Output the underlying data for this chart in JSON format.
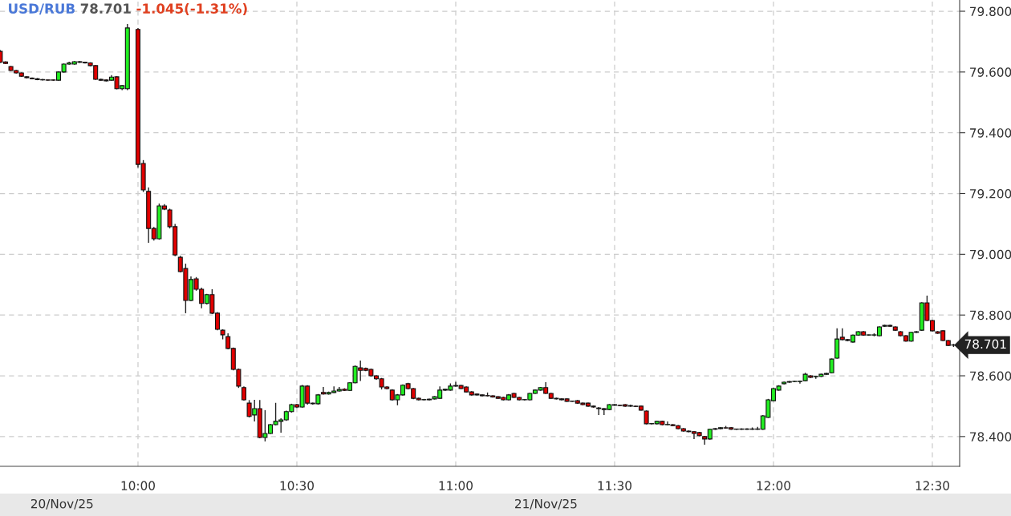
{
  "chart_data": {
    "type": "candlestick",
    "title": "USD/RUB 78.701 -1.045(-1.31%)",
    "x": [
      9.5667,
      9.5833,
      9.6,
      9.6167,
      9.6333,
      9.65,
      9.6667,
      9.6833,
      9.7,
      9.7167,
      9.7333,
      9.75,
      9.7667,
      9.7833,
      9.8,
      9.8167,
      9.8333,
      9.85,
      9.8667,
      9.8833,
      9.9,
      9.9167,
      9.9333,
      9.95,
      9.9667,
      10,
      10.0167,
      10.0333,
      10.05,
      10.0667,
      10.0833,
      10.1,
      10.1167,
      10.1333,
      10.15,
      10.1667,
      10.1833,
      10.2,
      10.2167,
      10.2333,
      10.25,
      10.2667,
      10.2833,
      10.3,
      10.3167,
      10.3333,
      10.35,
      10.3667,
      10.3833,
      10.4,
      10.4167,
      10.4333,
      10.45,
      10.4667,
      10.4833,
      10.5,
      10.5167,
      10.5333,
      10.55,
      10.5667,
      10.5833,
      10.6,
      10.6167,
      10.6333,
      10.65,
      10.6667,
      10.6833,
      10.7,
      10.7167,
      10.7333,
      10.75,
      10.7667,
      10.7833,
      10.8,
      10.8167,
      10.8333,
      10.85,
      10.8667,
      10.8833,
      10.9,
      10.9167,
      10.9333,
      10.95,
      10.9667,
      10.9833,
      11,
      11.0167,
      11.0333,
      11.05,
      11.0667,
      11.0833,
      11.1,
      11.1167,
      11.1333,
      11.15,
      11.1667,
      11.1833,
      11.2,
      11.2167,
      11.2333,
      11.25,
      11.2667,
      11.2833,
      11.3,
      11.3167,
      11.3333,
      11.35,
      11.3667,
      11.3833,
      11.4,
      11.4167,
      11.4333,
      11.45,
      11.4667,
      11.4833,
      11.5,
      11.5167,
      11.5333,
      11.55,
      11.5667,
      11.5833,
      11.6,
      11.6167,
      11.6333,
      11.65,
      11.6667,
      11.6833,
      11.7,
      11.7167,
      11.7333,
      11.75,
      11.7667,
      11.7833,
      11.8,
      11.8167,
      11.8333,
      11.85,
      11.8667,
      11.8833,
      11.9,
      11.9167,
      11.9333,
      11.95,
      11.9667,
      11.9833,
      12,
      12.0167,
      12.0333,
      12.05,
      12.0667,
      12.0833,
      12.1,
      12.1167,
      12.1333,
      12.15,
      12.1667,
      12.1833,
      12.2,
      12.2167,
      12.2333,
      12.25,
      12.2667,
      12.2833,
      12.3,
      12.3167,
      12.3333,
      12.35,
      12.3667,
      12.3833,
      12.4,
      12.4167,
      12.4333,
      12.45,
      12.4667,
      12.4833,
      12.5,
      12.5167,
      12.5333,
      12.55,
      12.5667
    ],
    "ohlc": [
      [
        79.668,
        79.672,
        79.63,
        79.632
      ],
      [
        79.633,
        79.635,
        79.626,
        79.628
      ],
      [
        79.618,
        79.62,
        79.603,
        79.605
      ],
      [
        79.605,
        79.607,
        79.595,
        79.597
      ],
      [
        79.597,
        79.598,
        79.584,
        79.586
      ],
      [
        79.584,
        79.586,
        79.579,
        79.581
      ],
      [
        79.58,
        79.582,
        79.576,
        79.578
      ],
      [
        79.578,
        79.58,
        79.573,
        79.575
      ],
      [
        79.575,
        79.577,
        79.572,
        79.574
      ],
      [
        79.574,
        79.576,
        79.571,
        79.573
      ],
      [
        79.574,
        79.576,
        79.571,
        79.573
      ],
      [
        79.573,
        79.602,
        79.571,
        79.6
      ],
      [
        79.6,
        79.628,
        79.598,
        79.626
      ],
      [
        79.626,
        79.634,
        79.624,
        79.63
      ],
      [
        79.626,
        79.636,
        79.624,
        79.634
      ],
      [
        79.634,
        79.636,
        79.63,
        79.632
      ],
      [
        79.632,
        79.634,
        79.628,
        79.63
      ],
      [
        79.63,
        79.632,
        79.619,
        79.621
      ],
      [
        79.621,
        79.623,
        79.574,
        79.576
      ],
      [
        79.576,
        79.578,
        79.571,
        79.573
      ],
      [
        79.574,
        79.576,
        79.569,
        79.571
      ],
      [
        79.573,
        79.59,
        79.571,
        79.583
      ],
      [
        79.584,
        79.586,
        79.543,
        79.545
      ],
      [
        79.545,
        79.557,
        79.54,
        79.555
      ],
      [
        79.545,
        79.758,
        79.54,
        79.745
      ],
      [
        79.74,
        79.745,
        79.285,
        79.296
      ],
      [
        79.299,
        79.31,
        79.205,
        79.212
      ],
      [
        79.207,
        79.22,
        79.038,
        79.085
      ],
      [
        79.085,
        79.09,
        79.045,
        79.051
      ],
      [
        79.051,
        79.167,
        79.048,
        79.159
      ],
      [
        79.159,
        79.165,
        79.145,
        79.149
      ],
      [
        79.146,
        79.15,
        79.085,
        79.091
      ],
      [
        79.091,
        79.1,
        78.994,
        78.998
      ],
      [
        78.99,
        78.995,
        78.94,
        78.943
      ],
      [
        78.953,
        78.969,
        78.806,
        78.848
      ],
      [
        78.848,
        78.927,
        78.845,
        78.917
      ],
      [
        78.919,
        78.925,
        78.88,
        78.885
      ],
      [
        78.885,
        78.89,
        78.822,
        78.838
      ],
      [
        78.838,
        78.87,
        78.835,
        78.867
      ],
      [
        78.867,
        78.885,
        78.803,
        78.806
      ],
      [
        78.806,
        78.81,
        78.75,
        78.753
      ],
      [
        78.75,
        78.753,
        78.72,
        78.735
      ],
      [
        78.729,
        78.74,
        78.687,
        78.69
      ],
      [
        78.69,
        78.693,
        78.618,
        78.621
      ],
      [
        78.621,
        78.624,
        78.56,
        78.566
      ],
      [
        78.561,
        78.565,
        78.518,
        78.521
      ],
      [
        78.51,
        78.52,
        78.463,
        78.466
      ],
      [
        78.471,
        78.521,
        78.45,
        78.492
      ],
      [
        78.492,
        78.52,
        78.394,
        78.397
      ],
      [
        78.397,
        78.487,
        78.384,
        78.41
      ],
      [
        78.41,
        78.442,
        78.408,
        78.439
      ],
      [
        78.439,
        78.511,
        78.437,
        78.45
      ],
      [
        78.45,
        78.46,
        78.413,
        78.455
      ],
      [
        78.455,
        78.485,
        78.452,
        78.482
      ],
      [
        78.482,
        78.508,
        78.479,
        78.505
      ],
      [
        78.505,
        78.508,
        78.494,
        78.497
      ],
      [
        78.497,
        78.57,
        78.495,
        78.566
      ],
      [
        78.566,
        78.569,
        78.505,
        78.51
      ],
      [
        78.51,
        78.512,
        78.505,
        78.508
      ],
      [
        78.508,
        78.54,
        78.505,
        78.537
      ],
      [
        78.545,
        78.563,
        78.538,
        78.54
      ],
      [
        78.54,
        78.548,
        78.538,
        78.545
      ],
      [
        78.545,
        78.565,
        78.543,
        78.55
      ],
      [
        78.55,
        78.563,
        78.548,
        78.555
      ],
      [
        78.556,
        78.559,
        78.55,
        78.552
      ],
      [
        78.552,
        78.579,
        78.55,
        78.577
      ],
      [
        78.577,
        78.634,
        78.575,
        78.631
      ],
      [
        78.626,
        78.65,
        78.583,
        78.618
      ],
      [
        78.624,
        78.627,
        78.615,
        78.618
      ],
      [
        78.621,
        78.624,
        78.597,
        78.6
      ],
      [
        78.6,
        78.602,
        78.587,
        78.59
      ],
      [
        78.59,
        78.593,
        78.555,
        78.563
      ],
      [
        78.563,
        78.566,
        78.555,
        78.558
      ],
      [
        78.553,
        78.556,
        78.518,
        78.521
      ],
      [
        78.521,
        78.54,
        78.503,
        78.537
      ],
      [
        78.537,
        78.572,
        78.535,
        78.569
      ],
      [
        78.574,
        78.577,
        78.555,
        78.558
      ],
      [
        78.558,
        78.56,
        78.523,
        78.526
      ],
      [
        78.526,
        78.528,
        78.519,
        78.521
      ],
      [
        78.521,
        78.524,
        78.519,
        78.521
      ],
      [
        78.521,
        78.525,
        78.519,
        78.523
      ],
      [
        78.524,
        78.533,
        78.522,
        78.531
      ],
      [
        78.526,
        78.565,
        78.524,
        78.553
      ],
      [
        78.553,
        78.558,
        78.55,
        78.556
      ],
      [
        78.553,
        78.575,
        78.551,
        78.566
      ],
      [
        78.566,
        78.58,
        78.564,
        78.568
      ],
      [
        78.568,
        78.57,
        78.556,
        78.558
      ],
      [
        78.563,
        78.565,
        78.545,
        78.547
      ],
      [
        78.547,
        78.549,
        78.535,
        78.537
      ],
      [
        78.54,
        78.542,
        78.535,
        78.537
      ],
      [
        78.537,
        78.539,
        78.532,
        78.534
      ],
      [
        78.535,
        78.545,
        78.532,
        78.534
      ],
      [
        78.534,
        78.536,
        78.528,
        78.53
      ],
      [
        78.531,
        78.533,
        78.524,
        78.526
      ],
      [
        78.529,
        78.531,
        78.519,
        78.521
      ],
      [
        78.521,
        78.54,
        78.519,
        78.537
      ],
      [
        78.542,
        78.544,
        78.527,
        78.529
      ],
      [
        78.529,
        78.531,
        78.519,
        78.521
      ],
      [
        78.521,
        78.523,
        78.519,
        78.521
      ],
      [
        78.521,
        78.544,
        78.519,
        78.542
      ],
      [
        78.542,
        78.555,
        78.54,
        78.553
      ],
      [
        78.553,
        78.563,
        78.551,
        78.561
      ],
      [
        78.561,
        78.579,
        78.54,
        78.542
      ],
      [
        78.542,
        78.544,
        78.524,
        78.526
      ],
      [
        78.526,
        78.528,
        78.522,
        78.524
      ],
      [
        78.524,
        78.526,
        78.519,
        78.521
      ],
      [
        78.524,
        78.526,
        78.514,
        78.516
      ],
      [
        78.516,
        78.518,
        78.514,
        78.516
      ],
      [
        78.518,
        78.52,
        78.508,
        78.51
      ],
      [
        78.51,
        78.512,
        78.503,
        78.505
      ],
      [
        78.51,
        78.512,
        78.498,
        78.5
      ],
      [
        78.5,
        78.502,
        78.495,
        78.497
      ],
      [
        78.494,
        78.497,
        78.471,
        78.492
      ],
      [
        78.492,
        78.494,
        78.471,
        78.489
      ],
      [
        78.489,
        78.507,
        78.487,
        78.505
      ],
      [
        78.505,
        78.507,
        78.501,
        78.503
      ],
      [
        78.503,
        78.505,
        78.5,
        78.502
      ],
      [
        78.505,
        78.507,
        78.498,
        78.5
      ],
      [
        78.502,
        78.505,
        78.498,
        78.5
      ],
      [
        78.5,
        78.502,
        78.497,
        78.499
      ],
      [
        78.5,
        78.502,
        78.485,
        78.487
      ],
      [
        78.484,
        78.486,
        78.44,
        78.442
      ],
      [
        78.442,
        78.444,
        78.44,
        78.442
      ],
      [
        78.442,
        78.452,
        78.44,
        78.45
      ],
      [
        78.45,
        78.452,
        78.437,
        78.439
      ],
      [
        78.439,
        78.45,
        78.437,
        78.439
      ],
      [
        78.439,
        78.441,
        78.434,
        78.436
      ],
      [
        78.436,
        78.438,
        78.424,
        78.426
      ],
      [
        78.426,
        78.428,
        78.416,
        78.418
      ],
      [
        78.418,
        78.42,
        78.414,
        78.416
      ],
      [
        78.416,
        78.418,
        78.392,
        78.41
      ],
      [
        78.413,
        78.415,
        78.401,
        78.403
      ],
      [
        78.4,
        78.402,
        78.373,
        78.392
      ],
      [
        78.392,
        78.426,
        78.39,
        78.424
      ],
      [
        78.424,
        78.428,
        78.422,
        78.426
      ],
      [
        78.426,
        78.431,
        78.424,
        78.429
      ],
      [
        78.429,
        78.435,
        78.426,
        78.428
      ],
      [
        78.429,
        78.431,
        78.422,
        78.424
      ],
      [
        78.424,
        78.426,
        78.422,
        78.424
      ],
      [
        78.424,
        78.427,
        78.422,
        78.425
      ],
      [
        78.425,
        78.427,
        78.422,
        78.424
      ],
      [
        78.424,
        78.43,
        78.422,
        78.425
      ],
      [
        78.425,
        78.432,
        78.422,
        78.424
      ],
      [
        78.424,
        78.471,
        78.422,
        78.468
      ],
      [
        78.463,
        78.524,
        78.461,
        78.521
      ],
      [
        78.518,
        78.561,
        78.516,
        78.558
      ],
      [
        78.553,
        78.569,
        78.551,
        78.566
      ],
      [
        78.574,
        78.581,
        78.572,
        78.579
      ],
      [
        78.579,
        78.583,
        78.577,
        78.581
      ],
      [
        78.581,
        78.583,
        78.579,
        78.581
      ],
      [
        78.581,
        78.584,
        78.574,
        78.582
      ],
      [
        78.584,
        78.61,
        78.582,
        78.605
      ],
      [
        78.6,
        78.602,
        78.593,
        78.595
      ],
      [
        78.597,
        78.6,
        78.59,
        78.598
      ],
      [
        78.598,
        78.607,
        78.596,
        78.605
      ],
      [
        78.605,
        78.61,
        78.603,
        78.608
      ],
      [
        78.61,
        78.657,
        78.608,
        78.655
      ],
      [
        78.658,
        78.756,
        78.656,
        78.721
      ],
      [
        78.727,
        78.756,
        78.717,
        78.719
      ],
      [
        78.719,
        78.721,
        78.714,
        78.716
      ],
      [
        78.711,
        78.736,
        78.709,
        78.734
      ],
      [
        78.734,
        78.747,
        78.732,
        78.745
      ],
      [
        78.745,
        78.747,
        78.732,
        78.734
      ],
      [
        78.734,
        78.736,
        78.732,
        78.734
      ],
      [
        78.734,
        78.74,
        78.73,
        78.734
      ],
      [
        78.732,
        78.763,
        78.73,
        78.761
      ],
      [
        78.763,
        78.768,
        78.761,
        78.766
      ],
      [
        78.766,
        78.768,
        78.761,
        78.763
      ],
      [
        78.761,
        78.763,
        78.748,
        78.75
      ],
      [
        78.745,
        78.747,
        78.73,
        78.732
      ],
      [
        78.732,
        78.734,
        78.712,
        78.714
      ],
      [
        78.714,
        78.745,
        78.712,
        78.743
      ],
      [
        78.743,
        78.747,
        78.741,
        78.745
      ],
      [
        78.75,
        78.842,
        78.748,
        78.84
      ],
      [
        78.84,
        78.864,
        78.78,
        78.782
      ],
      [
        78.782,
        78.784,
        78.746,
        78.748
      ],
      [
        78.745,
        78.747,
        78.738,
        78.74
      ],
      [
        78.748,
        78.75,
        78.714,
        78.716
      ],
      [
        78.716,
        78.718,
        78.698,
        78.7
      ],
      [
        78.701,
        78.705,
        78.695,
        78.701
      ]
    ],
    "xlim": [
      9.5657,
      12.5859
    ],
    "xticks": [
      {
        "value": 10,
        "label": "10:00"
      },
      {
        "value": 10.5,
        "label": "10:30"
      },
      {
        "value": 11,
        "label": "11:00"
      },
      {
        "value": 11.5,
        "label": "11:30"
      },
      {
        "value": 12,
        "label": "12:00"
      },
      {
        "value": 12.5,
        "label": "12:30"
      }
    ],
    "ylim": [
      78.302,
      79.837
    ],
    "yticks": [
      {
        "value": 78.4,
        "label": "78.400"
      },
      {
        "value": 78.6,
        "label": "78.600"
      },
      {
        "value": 78.8,
        "label": "78.800"
      },
      {
        "value": 79.0,
        "label": "79.000"
      },
      {
        "value": 79.2,
        "label": "79.200"
      },
      {
        "value": 79.4,
        "label": "79.400"
      },
      {
        "value": 79.6,
        "label": "79.600"
      },
      {
        "value": 79.8,
        "label": "79.800"
      }
    ],
    "grid": true,
    "annotations": [
      "20/Nov/25",
      "21/Nov/25",
      "78.701"
    ]
  }
}
